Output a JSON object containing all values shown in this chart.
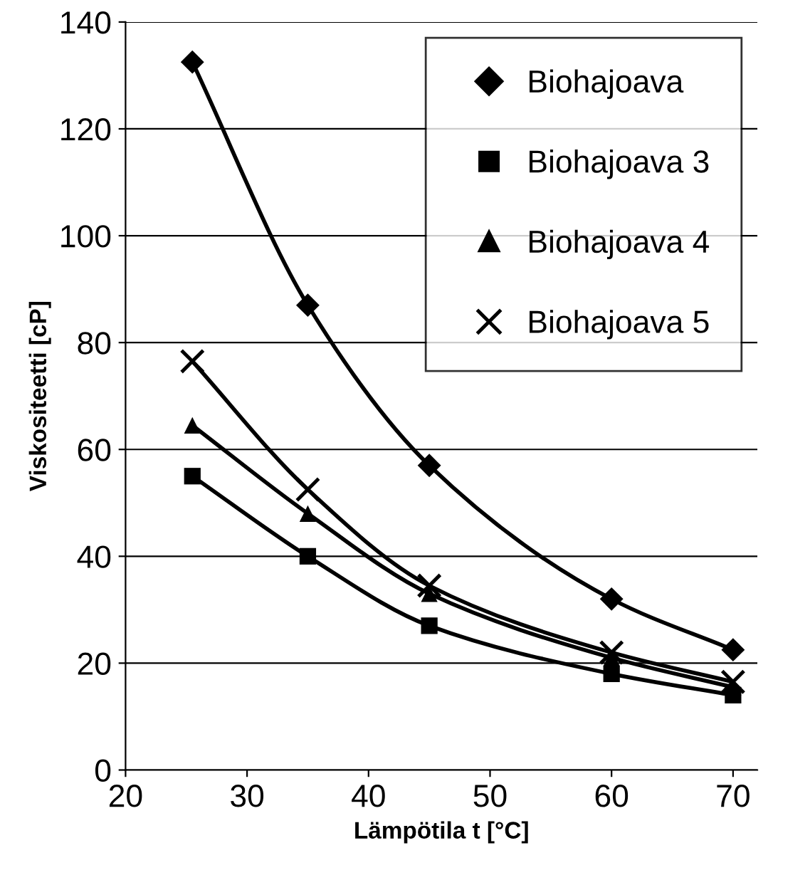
{
  "chart_data": {
    "type": "line",
    "xlabel": "Lämpötila t [°C]",
    "ylabel": "Viskositeetti [cP]",
    "x": [
      25.5,
      35,
      45,
      60,
      70
    ],
    "series": [
      {
        "name": "Biohajoava",
        "color": "#000000",
        "marker": "diamond",
        "values": [
          132.5,
          87,
          57,
          32,
          22.5
        ]
      },
      {
        "name": "Biohajoava 3",
        "color": "#000000",
        "marker": "square",
        "values": [
          55,
          40,
          27,
          18,
          14
        ]
      },
      {
        "name": "Biohajoava 4",
        "color": "#000000",
        "marker": "triangle",
        "values": [
          64.5,
          48,
          33,
          21,
          15.5
        ]
      },
      {
        "name": "Biohajoava 5",
        "color": "#000000",
        "marker": "cross",
        "values": [
          76.5,
          52.5,
          34.5,
          22,
          16.5
        ]
      }
    ],
    "xlim": [
      20,
      72
    ],
    "xticks": [
      20,
      30,
      40,
      50,
      60,
      70
    ],
    "ylim": [
      0,
      140
    ],
    "yticks": [
      0,
      20,
      40,
      60,
      80,
      100,
      120,
      140
    ],
    "grid": "y",
    "legend": "top right",
    "line_style": "solid"
  }
}
